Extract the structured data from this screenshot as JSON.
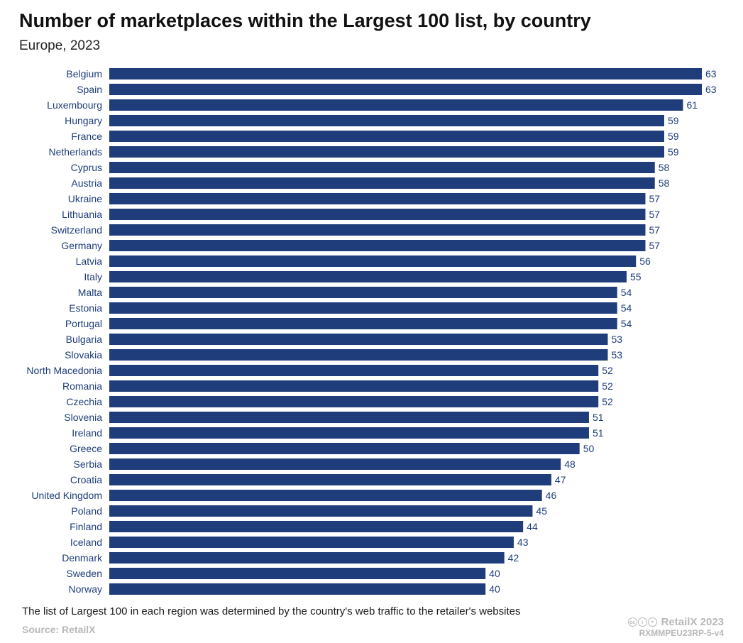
{
  "header": {
    "title": "Number of marketplaces within the Largest 100 list, by country",
    "subtitle": "Europe, 2023"
  },
  "footer": {
    "note": "The list of Largest 100 in each region was determined by the country's web traffic to the retailer's websites",
    "source": "Source: RetailX",
    "brand": "RetailX 2023",
    "code": "RXMMPEU23RP-5-v4",
    "license_icon": "creative-commons-icon"
  },
  "colors": {
    "bar": "#1f3d7a",
    "label": "#1f3d7a"
  },
  "chart_data": {
    "type": "bar",
    "orientation": "horizontal",
    "title": "Number of marketplaces within the Largest 100 list, by country",
    "subtitle": "Europe, 2023",
    "xlabel": "",
    "ylabel": "",
    "xlim": [
      0,
      63
    ],
    "grid": false,
    "legend": "none",
    "categories": [
      "Belgium",
      "Spain",
      "Luxembourg",
      "Hungary",
      "France",
      "Netherlands",
      "Cyprus",
      "Austria",
      "Ukraine",
      "Lithuania",
      "Switzerland",
      "Germany",
      "Latvia",
      "Italy",
      "Malta",
      "Estonia",
      "Portugal",
      "Bulgaria",
      "Slovakia",
      "North Macedonia",
      "Romania",
      "Czechia",
      "Slovenia",
      "Ireland",
      "Greece",
      "Serbia",
      "Croatia",
      "United Kingdom",
      "Poland",
      "Finland",
      "Iceland",
      "Denmark",
      "Sweden",
      "Norway"
    ],
    "values": [
      63,
      63,
      61,
      59,
      59,
      59,
      58,
      58,
      57,
      57,
      57,
      57,
      56,
      55,
      54,
      54,
      54,
      53,
      53,
      52,
      52,
      52,
      51,
      51,
      50,
      48,
      47,
      46,
      45,
      44,
      43,
      42,
      40,
      40
    ]
  }
}
